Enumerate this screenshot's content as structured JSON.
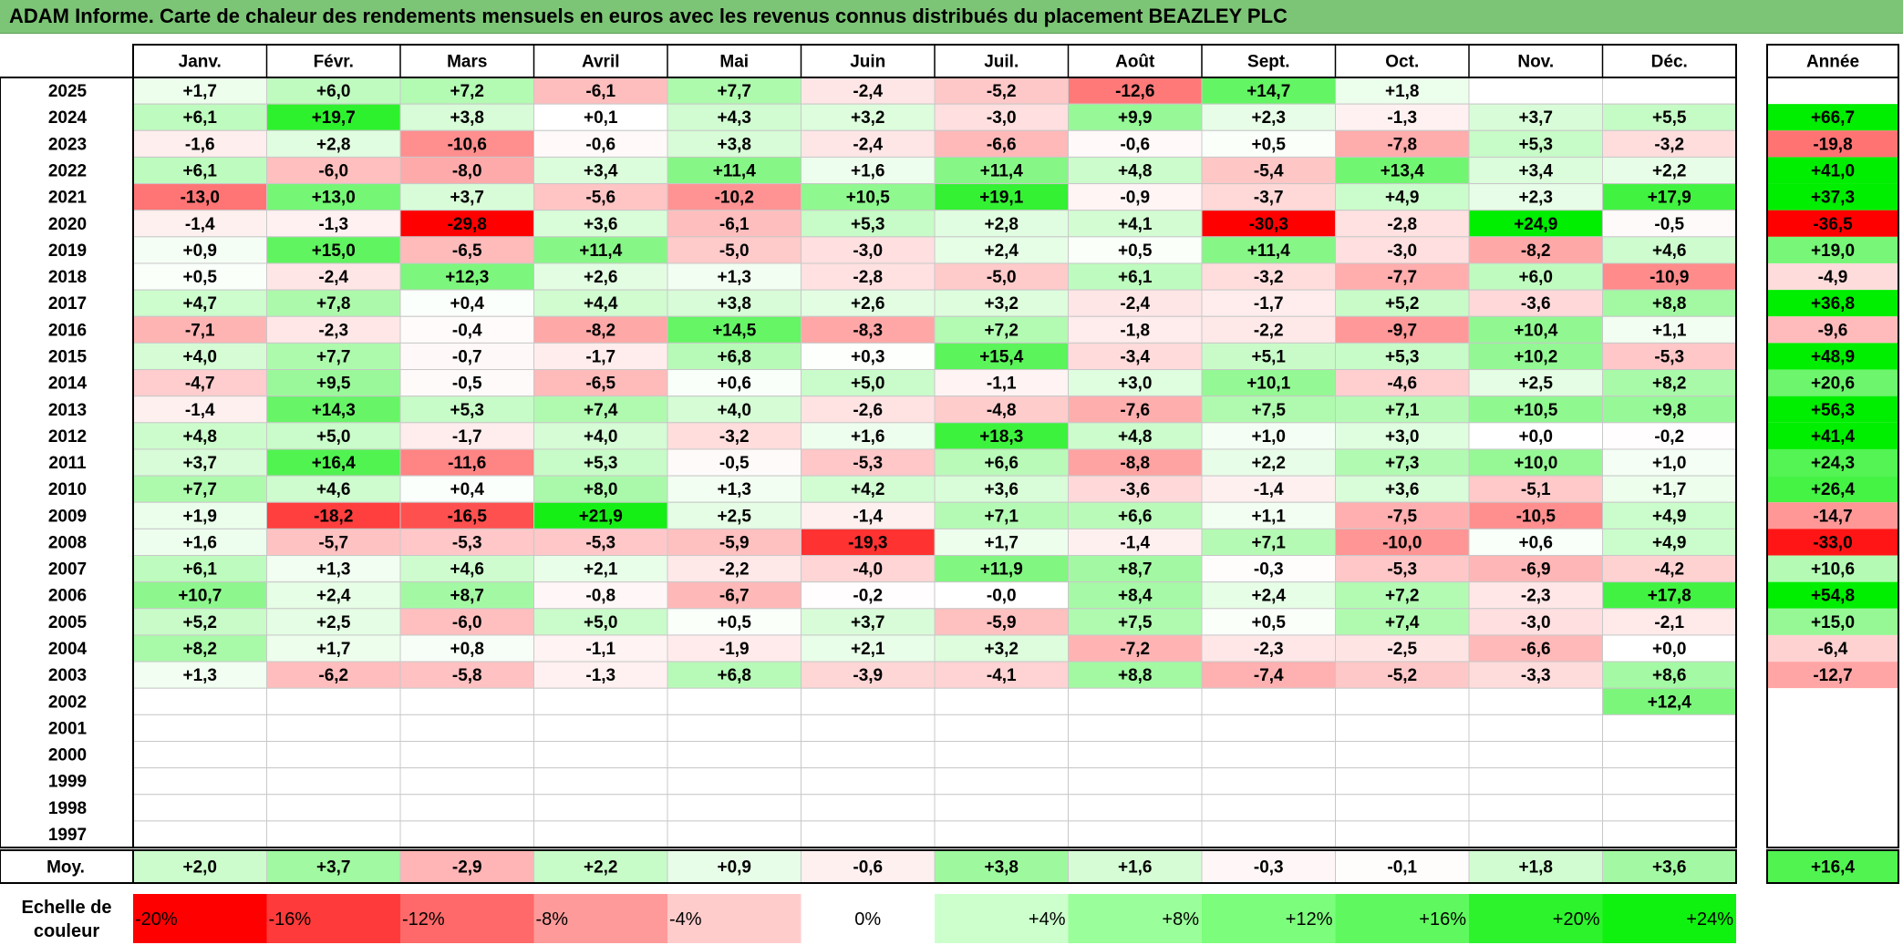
{
  "title": "ADAM Informe. Carte de chaleur des rendements mensuels en euros avec les revenus connus distribués du placement BEAZLEY PLC",
  "chart_data": {
    "type": "heatmap",
    "columns": [
      "Janv.",
      "Févr.",
      "Mars",
      "Avril",
      "Mai",
      "Juin",
      "Juil.",
      "Août",
      "Sept.",
      "Oct.",
      "Nov.",
      "Déc."
    ],
    "year_header": "Année",
    "rows": [
      {
        "year": "2025",
        "values": [
          "+1,7",
          "+6,0",
          "+7,2",
          "-6,1",
          "+7,7",
          "-2,4",
          "-5,2",
          "-12,6",
          "+14,7",
          "+1,8",
          "",
          ""
        ],
        "annual": ""
      },
      {
        "year": "2024",
        "values": [
          "+6,1",
          "+19,7",
          "+3,8",
          "+0,1",
          "+4,3",
          "+3,2",
          "-3,0",
          "+9,9",
          "+2,3",
          "-1,3",
          "+3,7",
          "+5,5"
        ],
        "annual": "+66,7"
      },
      {
        "year": "2023",
        "values": [
          "-1,6",
          "+2,8",
          "-10,6",
          "-0,6",
          "+3,8",
          "-2,4",
          "-6,6",
          "-0,6",
          "+0,5",
          "-7,8",
          "+5,3",
          "-3,2"
        ],
        "annual": "-19,8"
      },
      {
        "year": "2022",
        "values": [
          "+6,1",
          "-6,0",
          "-8,0",
          "+3,4",
          "+11,4",
          "+1,6",
          "+11,4",
          "+4,8",
          "-5,4",
          "+13,4",
          "+3,4",
          "+2,2"
        ],
        "annual": "+41,0"
      },
      {
        "year": "2021",
        "values": [
          "-13,0",
          "+13,0",
          "+3,7",
          "-5,6",
          "-10,2",
          "+10,5",
          "+19,1",
          "-0,9",
          "-3,7",
          "+4,9",
          "+2,3",
          "+17,9"
        ],
        "annual": "+37,3"
      },
      {
        "year": "2020",
        "values": [
          "-1,4",
          "-1,3",
          "-29,8",
          "+3,6",
          "-6,1",
          "+5,3",
          "+2,8",
          "+4,1",
          "-30,3",
          "-2,8",
          "+24,9",
          "-0,5"
        ],
        "annual": "-36,5"
      },
      {
        "year": "2019",
        "values": [
          "+0,9",
          "+15,0",
          "-6,5",
          "+11,4",
          "-5,0",
          "-3,0",
          "+2,4",
          "+0,5",
          "+11,4",
          "-3,0",
          "-8,2",
          "+4,6"
        ],
        "annual": "+19,0"
      },
      {
        "year": "2018",
        "values": [
          "+0,5",
          "-2,4",
          "+12,3",
          "+2,6",
          "+1,3",
          "-2,8",
          "-5,0",
          "+6,1",
          "-3,2",
          "-7,7",
          "+6,0",
          "-10,9"
        ],
        "annual": "-4,9"
      },
      {
        "year": "2017",
        "values": [
          "+4,7",
          "+7,8",
          "+0,4",
          "+4,4",
          "+3,8",
          "+2,6",
          "+3,2",
          "-2,4",
          "-1,7",
          "+5,2",
          "-3,6",
          "+8,8"
        ],
        "annual": "+36,8"
      },
      {
        "year": "2016",
        "values": [
          "-7,1",
          "-2,3",
          "-0,4",
          "-8,2",
          "+14,5",
          "-8,3",
          "+7,2",
          "-1,8",
          "-2,2",
          "-9,7",
          "+10,4",
          "+1,1"
        ],
        "annual": "-9,6"
      },
      {
        "year": "2015",
        "values": [
          "+4,0",
          "+7,7",
          "-0,7",
          "-1,7",
          "+6,8",
          "+0,3",
          "+15,4",
          "-3,4",
          "+5,1",
          "+5,3",
          "+10,2",
          "-5,3"
        ],
        "annual": "+48,9"
      },
      {
        "year": "2014",
        "values": [
          "-4,7",
          "+9,5",
          "-0,5",
          "-6,5",
          "+0,6",
          "+5,0",
          "-1,1",
          "+3,0",
          "+10,1",
          "-4,6",
          "+2,5",
          "+8,2"
        ],
        "annual": "+20,6"
      },
      {
        "year": "2013",
        "values": [
          "-1,4",
          "+14,3",
          "+5,3",
          "+7,4",
          "+4,0",
          "-2,6",
          "-4,8",
          "-7,6",
          "+7,5",
          "+7,1",
          "+10,5",
          "+9,8"
        ],
        "annual": "+56,3"
      },
      {
        "year": "2012",
        "values": [
          "+4,8",
          "+5,0",
          "-1,7",
          "+4,0",
          "-3,2",
          "+1,6",
          "+18,3",
          "+4,8",
          "+1,0",
          "+3,0",
          "+0,0",
          "-0,2"
        ],
        "annual": "+41,4"
      },
      {
        "year": "2011",
        "values": [
          "+3,7",
          "+16,4",
          "-11,6",
          "+5,3",
          "-0,5",
          "-5,3",
          "+6,6",
          "-8,8",
          "+2,2",
          "+7,3",
          "+10,0",
          "+1,0"
        ],
        "annual": "+24,3"
      },
      {
        "year": "2010",
        "values": [
          "+7,7",
          "+4,6",
          "+0,4",
          "+8,0",
          "+1,3",
          "+4,2",
          "+3,6",
          "-3,6",
          "-1,4",
          "+3,6",
          "-5,1",
          "+1,7"
        ],
        "annual": "+26,4"
      },
      {
        "year": "2009",
        "values": [
          "+1,9",
          "-18,2",
          "-16,5",
          "+21,9",
          "+2,5",
          "-1,4",
          "+7,1",
          "+6,6",
          "+1,1",
          "-7,5",
          "-10,5",
          "+4,9"
        ],
        "annual": "-14,7"
      },
      {
        "year": "2008",
        "values": [
          "+1,6",
          "-5,7",
          "-5,3",
          "-5,3",
          "-5,9",
          "-19,3",
          "+1,7",
          "-1,4",
          "+7,1",
          "-10,0",
          "+0,6",
          "+4,9"
        ],
        "annual": "-33,0"
      },
      {
        "year": "2007",
        "values": [
          "+6,1",
          "+1,3",
          "+4,6",
          "+2,1",
          "-2,2",
          "-4,0",
          "+11,9",
          "+8,7",
          "-0,3",
          "-5,3",
          "-6,9",
          "-4,2"
        ],
        "annual": "+10,6"
      },
      {
        "year": "2006",
        "values": [
          "+10,7",
          "+2,4",
          "+8,7",
          "-0,8",
          "-6,7",
          "-0,2",
          "-0,0",
          "+8,4",
          "+2,4",
          "+7,2",
          "-2,3",
          "+17,8"
        ],
        "annual": "+54,8"
      },
      {
        "year": "2005",
        "values": [
          "+5,2",
          "+2,5",
          "-6,0",
          "+5,0",
          "+0,5",
          "+3,7",
          "-5,9",
          "+7,5",
          "+0,5",
          "+7,4",
          "-3,0",
          "-2,1"
        ],
        "annual": "+15,0"
      },
      {
        "year": "2004",
        "values": [
          "+8,2",
          "+1,7",
          "+0,8",
          "-1,1",
          "-1,9",
          "+2,1",
          "+3,2",
          "-7,2",
          "-2,3",
          "-2,5",
          "-6,6",
          "+0,0"
        ],
        "annual": "-6,4"
      },
      {
        "year": "2003",
        "values": [
          "+1,3",
          "-6,2",
          "-5,8",
          "-1,3",
          "+6,8",
          "-3,9",
          "-4,1",
          "+8,8",
          "-7,4",
          "-5,2",
          "-3,3",
          "+8,6"
        ],
        "annual": "-12,7"
      },
      {
        "year": "2002",
        "values": [
          "",
          "",
          "",
          "",
          "",
          "",
          "",
          "",
          "",
          "",
          "",
          "+12,4"
        ],
        "annual": ""
      },
      {
        "year": "2001",
        "values": [
          "",
          "",
          "",
          "",
          "",
          "",
          "",
          "",
          "",
          "",
          "",
          ""
        ],
        "annual": ""
      },
      {
        "year": "2000",
        "values": [
          "",
          "",
          "",
          "",
          "",
          "",
          "",
          "",
          "",
          "",
          "",
          ""
        ],
        "annual": ""
      },
      {
        "year": "1999",
        "values": [
          "",
          "",
          "",
          "",
          "",
          "",
          "",
          "",
          "",
          "",
          "",
          ""
        ],
        "annual": ""
      },
      {
        "year": "1998",
        "values": [
          "",
          "",
          "",
          "",
          "",
          "",
          "",
          "",
          "",
          "",
          "",
          ""
        ],
        "annual": ""
      },
      {
        "year": "1997",
        "values": [
          "",
          "",
          "",
          "",
          "",
          "",
          "",
          "",
          "",
          "",
          "",
          ""
        ],
        "annual": ""
      }
    ],
    "average": {
      "label": "Moy.",
      "values": [
        "+2,0",
        "+3,7",
        "-2,9",
        "+2,2",
        "+0,9",
        "-0,6",
        "+3,8",
        "+1,6",
        "-0,3",
        "-0,1",
        "+1,8",
        "+3,6"
      ],
      "annual": "+16,4"
    },
    "scale": {
      "label_lines": [
        "Echelle de",
        "couleur"
      ],
      "steps": [
        "-20%",
        "-16%",
        "-12%",
        "-8%",
        "-4%",
        "0%",
        "+4%",
        "+8%",
        "+12%",
        "+16%",
        "+20%",
        "+24%"
      ],
      "colors": [
        "#ff0000",
        "#ff3a3a",
        "#ff6969",
        "#ff9a9a",
        "#ffcccc",
        "#ffffff",
        "#ccffcc",
        "#9afe9a",
        "#7cfe7c",
        "#5ff95f",
        "#2df32d",
        "#0ff20f"
      ]
    },
    "colors": {
      "negative": "#ff0000",
      "neutral": "#ffffff",
      "positive": "#00ee00",
      "header_bar": "#7cc576"
    }
  }
}
